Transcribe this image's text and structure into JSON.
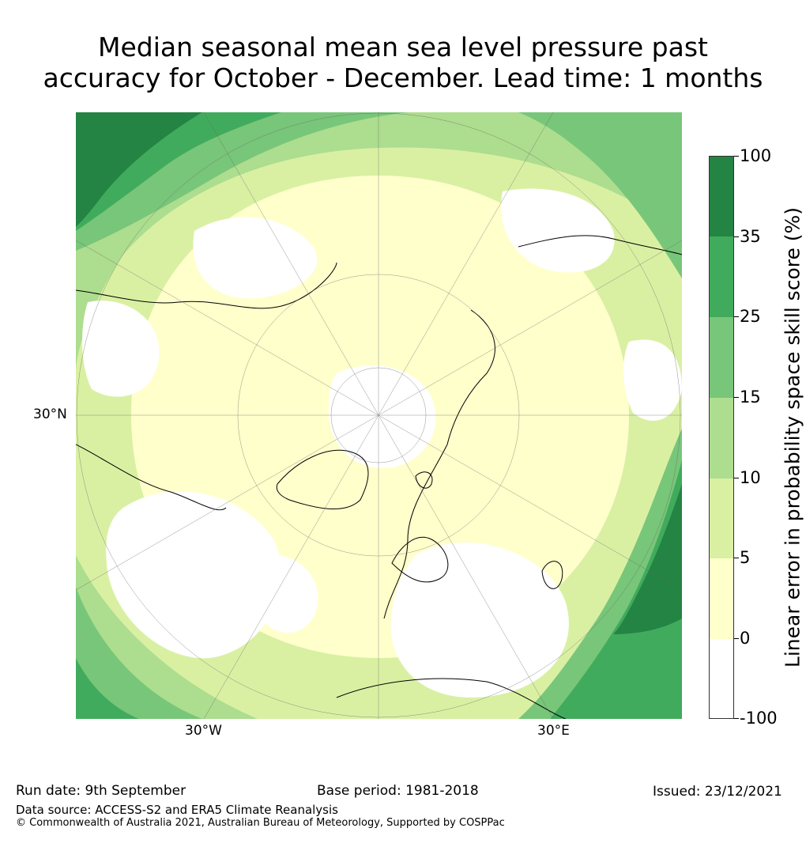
{
  "title_lines": [
    "Median seasonal mean sea level pressure past",
    "accuracy for October - December. Lead time: 1 months"
  ],
  "map": {
    "projection": "North polar stereographic",
    "longitude_labels": [
      "30°W",
      "30°E"
    ],
    "latitude_labels": [
      "30°N"
    ]
  },
  "colorbar": {
    "label": "Linear error in probability space skill score (%)",
    "tick_labels": [
      "100",
      "35",
      "25",
      "15",
      "10",
      "5",
      "0",
      "-100"
    ],
    "bins": [
      {
        "range": "-100 to 0",
        "color": "#ffffff"
      },
      {
        "range": "0 to 5",
        "color": "#ffffcc"
      },
      {
        "range": "5 to 10",
        "color": "#d9f0a3"
      },
      {
        "range": "10 to 15",
        "color": "#addd8e"
      },
      {
        "range": "15 to 25",
        "color": "#78c679"
      },
      {
        "range": "25 to 35",
        "color": "#41ab5d"
      },
      {
        "range": "35 to 100",
        "color": "#238443"
      }
    ]
  },
  "footer": {
    "run_date": "Run date: 9th September",
    "base_period": "Base period: 1981-2018",
    "issued": "Issued: 23/12/2021",
    "data_source": "Data source: ACCESS-S2 and ERA5 Climate Reanalysis",
    "copyright": "© Commonwealth of Australia 2021, Australian Bureau of Meteorology, Supported by COSPPac"
  }
}
